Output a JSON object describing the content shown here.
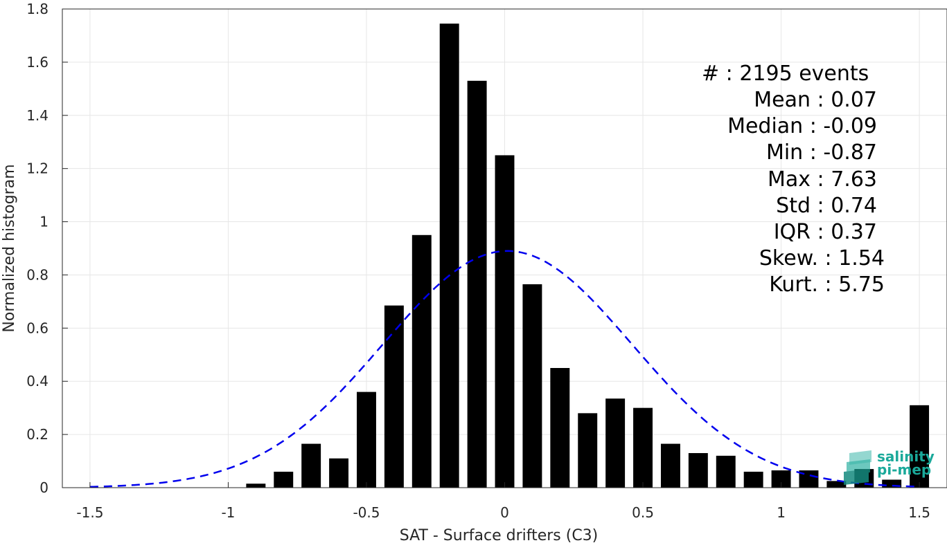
{
  "chart_data": {
    "type": "bar",
    "xlabel": "SAT - Surface drifters (C3)",
    "ylabel": "Normalized histogram",
    "xlim": [
      -1.6,
      1.6
    ],
    "ylim": [
      0,
      1.8
    ],
    "xticks": [
      -1.5,
      -1,
      -0.5,
      0,
      0.5,
      1,
      1.5
    ],
    "xtick_labels": [
      "-1.5",
      "-1",
      "-0.5",
      "0",
      "0.5",
      "1",
      "1.5"
    ],
    "yticks": [
      0,
      0.2,
      0.4,
      0.6,
      0.8,
      1,
      1.2,
      1.4,
      1.6,
      1.8
    ],
    "ytick_labels": [
      "0",
      "0.2",
      "0.4",
      "0.6",
      "0.8",
      "1",
      "1.2",
      "1.4",
      "1.6",
      "1.8"
    ],
    "grid": true,
    "bar_color": "#000000",
    "bins": [
      {
        "x": -0.9,
        "y": 0.015
      },
      {
        "x": -0.8,
        "y": 0.06
      },
      {
        "x": -0.7,
        "y": 0.165
      },
      {
        "x": -0.6,
        "y": 0.11
      },
      {
        "x": -0.5,
        "y": 0.36
      },
      {
        "x": -0.4,
        "y": 0.685
      },
      {
        "x": -0.3,
        "y": 0.95
      },
      {
        "x": -0.2,
        "y": 1.745
      },
      {
        "x": -0.1,
        "y": 1.53
      },
      {
        "x": 0.0,
        "y": 1.25
      },
      {
        "x": 0.1,
        "y": 0.765
      },
      {
        "x": 0.2,
        "y": 0.45
      },
      {
        "x": 0.3,
        "y": 0.28
      },
      {
        "x": 0.4,
        "y": 0.335
      },
      {
        "x": 0.5,
        "y": 0.3
      },
      {
        "x": 0.6,
        "y": 0.165
      },
      {
        "x": 0.7,
        "y": 0.13
      },
      {
        "x": 0.8,
        "y": 0.12
      },
      {
        "x": 0.9,
        "y": 0.06
      },
      {
        "x": 1.0,
        "y": 0.065
      },
      {
        "x": 1.1,
        "y": 0.065
      },
      {
        "x": 1.2,
        "y": 0.025
      },
      {
        "x": 1.3,
        "y": 0.07
      },
      {
        "x": 1.4,
        "y": 0.03
      },
      {
        "x": 1.5,
        "y": 0.31
      }
    ],
    "fit": {
      "type": "gaussian",
      "mean": 0.01,
      "std": 0.45,
      "peak": 0.89,
      "x_range": [
        -1.5,
        1.5
      ],
      "color": "#0000ee",
      "style": "dashed"
    }
  },
  "stats": [
    {
      "label": "#  : 2195 events"
    },
    {
      "label": "Mean : 0.07"
    },
    {
      "label": "Median : -0.09"
    },
    {
      "label": "Min : -0.87"
    },
    {
      "label": "Max : 7.63"
    },
    {
      "label": "Std : 0.74"
    },
    {
      "label": "IQR : 0.37"
    },
    {
      "label": "Skew. : 1.54"
    },
    {
      "label": "Kurt. : 5.75"
    }
  ],
  "logo": {
    "line1": "salinity",
    "line2": "pi-mep",
    "color": "#1aa99a"
  }
}
